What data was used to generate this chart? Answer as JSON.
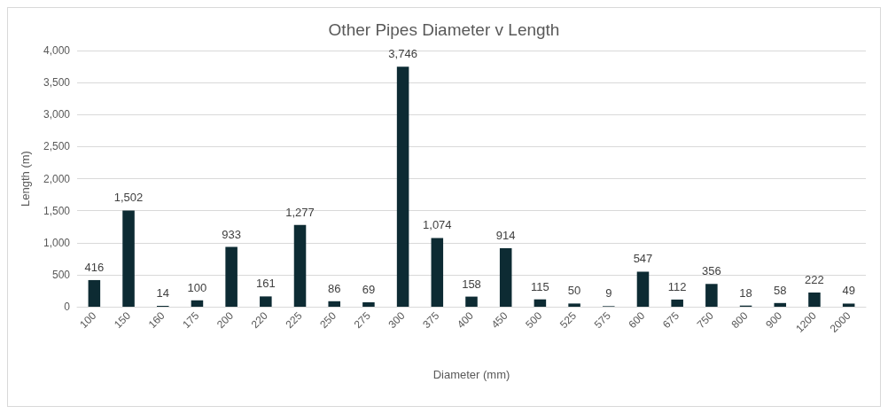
{
  "chart_data": {
    "type": "bar",
    "title": "Other Pipes Diameter v Length",
    "xlabel": "Diameter (mm)",
    "ylabel": "Length (m)",
    "categories": [
      "100",
      "150",
      "160",
      "175",
      "200",
      "220",
      "225",
      "250",
      "275",
      "300",
      "375",
      "400",
      "450",
      "500",
      "525",
      "575",
      "600",
      "675",
      "750",
      "800",
      "900",
      "1200",
      "2000"
    ],
    "values": [
      416,
      1502,
      14,
      100,
      933,
      161,
      1277,
      86,
      69,
      3746,
      1074,
      158,
      914,
      115,
      50,
      9,
      547,
      112,
      356,
      18,
      58,
      222,
      49
    ],
    "value_labels": [
      "416",
      "1,502",
      "14",
      "100",
      "933",
      "161",
      "1,277",
      "86",
      "69",
      "3,746",
      "1,074",
      "158",
      "914",
      "115",
      "50",
      "9",
      "547",
      "112",
      "356",
      "18",
      "58",
      "222",
      "49"
    ],
    "color": "#0d2b33",
    "ylim": [
      0,
      4000
    ],
    "yticks": [
      {
        "value": 0,
        "label": "0"
      },
      {
        "value": 500,
        "label": "500"
      },
      {
        "value": 1000,
        "label": "1,000"
      },
      {
        "value": 1500,
        "label": "1,500"
      },
      {
        "value": 2000,
        "label": "2,000"
      },
      {
        "value": 2500,
        "label": "2,500"
      },
      {
        "value": 3000,
        "label": "3,000"
      },
      {
        "value": 3500,
        "label": "3,500"
      },
      {
        "value": 4000,
        "label": "4,000"
      }
    ],
    "grid": "y"
  }
}
